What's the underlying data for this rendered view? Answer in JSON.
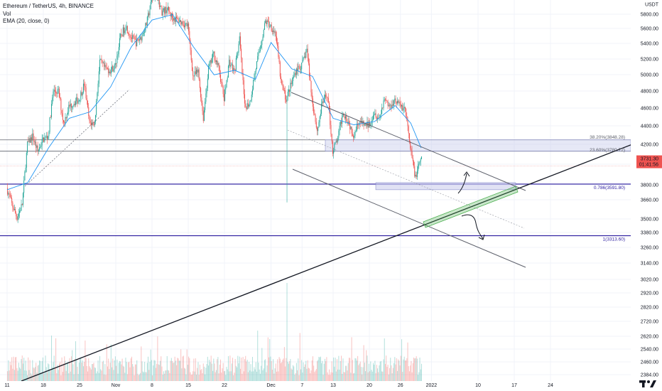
{
  "header": {
    "symbol_line": "Ethereum / TetherUS, 4h, BINANCE",
    "vol_label": "Vol",
    "ema_label": "EMA (20, close, 0)"
  },
  "colors": {
    "up": "#26a69a",
    "down": "#ef5350",
    "ema": "#2196f3",
    "purple_line": "#2a1b9f",
    "zone_fill": "#c8cbeb",
    "green_channel": "#4caf50",
    "price_label": "#ef5350"
  },
  "chart_data": {
    "type": "candlestick",
    "symbol": "ETHUSDT",
    "timeframe": "4h",
    "exchange": "BINANCE",
    "currency_label": "USDT",
    "y_scale": "log",
    "ylim": [
      2330,
      6050
    ],
    "y_ticks": [
      "5800.00",
      "5600.00",
      "5400.00",
      "5200.00",
      "5000.00",
      "4800.00",
      "4600.00",
      "4400.00",
      "4200.00",
      "4000.00",
      "3800.00",
      "3660.00",
      "3500.00",
      "3380.00",
      "3260.00",
      "3140.00",
      "3020.00",
      "2920.00",
      "2820.00",
      "2720.00",
      "2620.00",
      "2540.00",
      "2460.00",
      "2384.00"
    ],
    "x_ticks": [
      "11",
      "18",
      "25",
      "Nov",
      "8",
      "15",
      "22",
      "Dec",
      "7",
      "13",
      "20",
      "26",
      "2022",
      "10",
      "17",
      "24"
    ],
    "x_dates": [
      "2021-10-11",
      "2021-10-18",
      "2021-10-25",
      "2021-11-01",
      "2021-11-08",
      "2021-11-15",
      "2021-11-22",
      "2021-12-01",
      "2021-12-07",
      "2021-12-13",
      "2021-12-20",
      "2021-12-26",
      "2022-01-01",
      "2022-01-10",
      "2022-01-17",
      "2022-01-24"
    ],
    "current_price": "3731.30",
    "countdown": "01:41:56",
    "price_path": [
      [
        "2021-10-11",
        3570
      ],
      [
        "2021-10-12",
        3480
      ],
      [
        "2021-10-13",
        3410
      ],
      [
        "2021-10-14",
        3480
      ],
      [
        "2021-10-15",
        3820
      ],
      [
        "2021-10-16",
        3870
      ],
      [
        "2021-10-17",
        3780
      ],
      [
        "2021-10-18",
        3850
      ],
      [
        "2021-10-19",
        3870
      ],
      [
        "2021-10-20",
        4150
      ],
      [
        "2021-10-21",
        4150
      ],
      [
        "2021-10-22",
        3950
      ],
      [
        "2021-10-23",
        4050
      ],
      [
        "2021-10-24",
        4080
      ],
      [
        "2021-10-25",
        4100
      ],
      [
        "2021-10-26",
        4200
      ],
      [
        "2021-10-27",
        3950
      ],
      [
        "2021-10-28",
        3950
      ],
      [
        "2021-10-29",
        4350
      ],
      [
        "2021-10-30",
        4300
      ],
      [
        "2021-10-31",
        4290
      ],
      [
        "2021-11-01",
        4320
      ],
      [
        "2021-11-02",
        4520
      ],
      [
        "2021-11-03",
        4600
      ],
      [
        "2021-11-04",
        4520
      ],
      [
        "2021-11-05",
        4480
      ],
      [
        "2021-11-06",
        4520
      ],
      [
        "2021-11-07",
        4610
      ],
      [
        "2021-11-08",
        4780
      ],
      [
        "2021-11-09",
        4820
      ],
      [
        "2021-11-10",
        4700
      ],
      [
        "2021-11-11",
        4720
      ],
      [
        "2021-11-12",
        4660
      ],
      [
        "2021-11-13",
        4640
      ],
      [
        "2021-11-14",
        4620
      ],
      [
        "2021-11-15",
        4600
      ],
      [
        "2021-11-16",
        4250
      ],
      [
        "2021-11-17",
        4280
      ],
      [
        "2021-11-18",
        3980
      ],
      [
        "2021-11-19",
        4300
      ],
      [
        "2021-11-20",
        4400
      ],
      [
        "2021-11-21",
        4300
      ],
      [
        "2021-11-22",
        4100
      ],
      [
        "2021-11-23",
        4350
      ],
      [
        "2021-11-24",
        4280
      ],
      [
        "2021-11-25",
        4500
      ],
      [
        "2021-11-26",
        4050
      ],
      [
        "2021-11-27",
        4080
      ],
      [
        "2021-11-28",
        4280
      ],
      [
        "2021-11-29",
        4450
      ],
      [
        "2021-11-30",
        4630
      ],
      [
        "2021-12-01",
        4600
      ],
      [
        "2021-12-02",
        4540
      ],
      [
        "2021-12-03",
        4210
      ],
      [
        "2021-12-04",
        4100
      ],
      [
        "2021-12-05",
        4200
      ],
      [
        "2021-12-06",
        4300
      ],
      [
        "2021-12-07",
        4320
      ],
      [
        "2021-12-08",
        4430
      ],
      [
        "2021-12-09",
        4100
      ],
      [
        "2021-12-10",
        3900
      ],
      [
        "2021-12-11",
        4080
      ],
      [
        "2021-12-12",
        4130
      ],
      [
        "2021-12-13",
        3780
      ],
      [
        "2021-12-14",
        3860
      ],
      [
        "2021-12-15",
        4020
      ],
      [
        "2021-12-16",
        3960
      ],
      [
        "2021-12-17",
        3880
      ],
      [
        "2021-12-18",
        3960
      ],
      [
        "2021-12-19",
        3940
      ],
      [
        "2021-12-20",
        3940
      ],
      [
        "2021-12-21",
        4020
      ],
      [
        "2021-12-22",
        3980
      ],
      [
        "2021-12-23",
        4110
      ],
      [
        "2021-12-24",
        4050
      ],
      [
        "2021-12-25",
        4100
      ],
      [
        "2021-12-26",
        4060
      ],
      [
        "2021-12-27",
        4040
      ],
      [
        "2021-12-28",
        3790
      ],
      [
        "2021-12-29",
        3630
      ],
      [
        "2021-12-30",
        3731
      ]
    ],
    "ema_path": [
      [
        "2021-10-11",
        3560
      ],
      [
        "2021-10-15",
        3600
      ],
      [
        "2021-10-19",
        3800
      ],
      [
        "2021-10-23",
        3980
      ],
      [
        "2021-10-27",
        4020
      ],
      [
        "2021-10-31",
        4180
      ],
      [
        "2021-11-04",
        4450
      ],
      [
        "2021-11-08",
        4640
      ],
      [
        "2021-11-12",
        4680
      ],
      [
        "2021-11-16",
        4450
      ],
      [
        "2021-11-20",
        4260
      ],
      [
        "2021-11-24",
        4290
      ],
      [
        "2021-11-28",
        4230
      ],
      [
        "2021-12-01",
        4480
      ],
      [
        "2021-12-05",
        4300
      ],
      [
        "2021-12-09",
        4250
      ],
      [
        "2021-12-13",
        3980
      ],
      [
        "2021-12-17",
        3940
      ],
      [
        "2021-12-21",
        3960
      ],
      [
        "2021-12-25",
        4060
      ],
      [
        "2021-12-28",
        3950
      ],
      [
        "2021-12-30",
        3800
      ]
    ],
    "fib_levels": [
      {
        "label": "38.20%(3848.28)",
        "price": 3848.28
      },
      {
        "label": "23.60%(3780.72)",
        "price": 3780.72
      },
      {
        "label": "0.786(3591.80)",
        "price": 3591.8
      },
      {
        "label": "1(3313.60)",
        "price": 3313.6
      }
    ],
    "volume": {
      "max_date": "2021-12-04",
      "level": "low"
    }
  }
}
